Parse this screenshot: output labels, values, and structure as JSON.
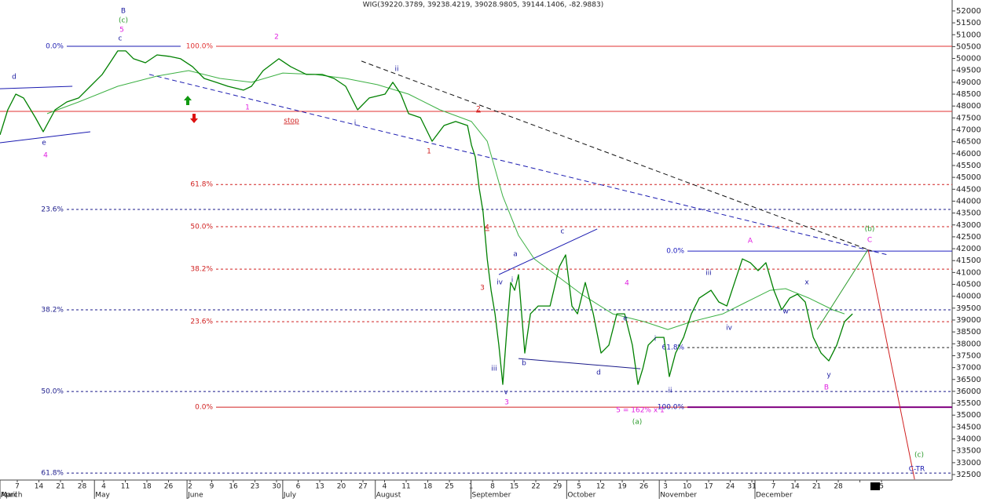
{
  "chart_data": {
    "type": "line",
    "title": "WIG(39220.3789, 39238.4219, 39028.9805, 39144.1406, -82.9883)",
    "xlim": [
      0.2,
      44.27
    ],
    "ylim": [
      32270,
      52460
    ],
    "yticks": [
      32500,
      33000,
      33500,
      34000,
      34500,
      35000,
      35500,
      36000,
      36500,
      37000,
      37500,
      38000,
      38500,
      39000,
      39500,
      40000,
      40500,
      41000,
      41500,
      42000,
      42500,
      43000,
      43500,
      44000,
      44500,
      45000,
      45500,
      46000,
      46500,
      47000,
      47500,
      48000,
      48500,
      49000,
      49500,
      50000,
      50500,
      51000,
      51500,
      52000
    ],
    "categories": [
      "8",
      "7",
      "14",
      "21",
      "28",
      "4",
      "11",
      "18",
      "26",
      "2",
      "9",
      "16",
      "23",
      "30",
      "6",
      "13",
      "20",
      "27",
      "4",
      "11",
      "18",
      "25",
      "1",
      "8",
      "15",
      "22",
      "29",
      "5",
      "12",
      "19",
      "26",
      "3",
      "10",
      "17",
      "24",
      "31",
      "7",
      "14",
      "21",
      "28",
      null,
      "5"
    ],
    "months": [
      "March",
      "April",
      "May",
      "June",
      "July",
      "August",
      "September",
      "October",
      "November",
      "December"
    ],
    "series": [
      {
        "color": "#008000",
        "width": 1.3,
        "x": [
          0.2,
          0.56,
          0.93,
          1.29,
          1.84,
          2.2,
          2.75,
          3.29,
          3.84,
          4.38,
          4.93,
          5.29,
          5.65,
          6.02,
          6.38,
          6.93,
          7.47,
          8.02,
          8.56,
          9.11,
          9.65,
          10.2,
          10.75,
          11.47,
          11.84,
          12.38,
          13.11,
          13.65,
          14.38,
          15.11,
          15.66,
          16.2,
          16.75,
          17.29,
          18.02,
          18.38,
          18.75,
          19.11,
          19.66,
          20.2,
          20.75,
          21.29,
          21.84,
          22.02,
          22.2,
          22.38,
          22.56,
          22.75,
          22.93,
          23.11,
          23.29,
          23.47,
          23.66,
          23.84,
          24.02,
          24.2,
          24.49,
          24.75,
          25.11,
          25.66,
          26.09,
          26.38,
          26.67,
          26.93,
          27.29,
          27.66,
          28.02,
          28.38,
          28.75,
          29.11,
          29.47,
          29.73,
          29.95,
          30.2,
          30.56,
          30.93,
          31.18,
          31.47,
          31.84,
          32.2,
          32.56,
          33.11,
          33.47,
          33.84,
          34.2,
          34.56,
          34.93,
          35.29,
          35.65,
          36.02,
          36.38,
          36.75,
          37.11,
          37.47,
          37.84,
          38.2,
          38.56,
          38.93,
          39.29,
          39.66
        ],
        "values": [
          46790,
          47840,
          48500,
          48340,
          47510,
          46920,
          47840,
          48170,
          48340,
          48830,
          49330,
          49820,
          50320,
          50320,
          49990,
          49820,
          50150,
          50090,
          49990,
          49660,
          49160,
          49000,
          48830,
          48670,
          48830,
          49490,
          49990,
          49660,
          49330,
          49330,
          49160,
          48830,
          47840,
          48340,
          48500,
          49000,
          48500,
          47680,
          47510,
          46520,
          47180,
          47350,
          47180,
          46360,
          45860,
          44540,
          43550,
          41570,
          40250,
          39260,
          37940,
          36290,
          38600,
          40580,
          40250,
          40910,
          37610,
          39260,
          39590,
          39590,
          41240,
          41740,
          39590,
          39260,
          40580,
          39260,
          37610,
          37940,
          39260,
          39260,
          37940,
          36290,
          36950,
          37940,
          38270,
          38270,
          36620,
          37610,
          38270,
          39260,
          39920,
          40250,
          39760,
          39590,
          40580,
          41570,
          41410,
          41080,
          41410,
          40250,
          39430,
          39920,
          40090,
          39760,
          38270,
          37610,
          37280,
          37940,
          38930,
          39260
        ]
      },
      {
        "color": "#3cb043",
        "width": 1,
        "x": [
          2.38,
          3.84,
          5.65,
          7.47,
          8.93,
          10.38,
          11.84,
          13.29,
          14.75,
          16.2,
          17.66,
          19.11,
          20.56,
          22.02,
          22.75,
          23.47,
          24.2,
          24.93,
          25.66,
          27.11,
          28.56,
          30.02,
          31.11,
          32.2,
          33.66,
          34.75,
          35.84,
          36.56,
          37.65,
          38.75,
          39.29
        ],
        "values": [
          47680,
          48170,
          48830,
          49260,
          49490,
          49160,
          49000,
          49390,
          49330,
          49160,
          48900,
          48500,
          47840,
          47350,
          46520,
          44210,
          42560,
          41570,
          41080,
          40090,
          39260,
          38930,
          38600,
          38930,
          39260,
          39760,
          40250,
          40320,
          39920,
          39430,
          39260
        ]
      }
    ],
    "levels": [
      {
        "value": 50515,
        "label": "100.0%",
        "color": "#e03030",
        "dash": false,
        "x": [
          10.2,
          44.27
        ]
      },
      {
        "value": 50515,
        "label": "0.0%",
        "color": "#1a1ab0",
        "dash": false,
        "x": [
          3.29,
          8.56
        ]
      },
      {
        "value": 47776,
        "color": "#e03030",
        "dash": false,
        "x": [
          0.2,
          44.27
        ]
      },
      {
        "value": 44700,
        "label": "61.8%",
        "color": "#d02020",
        "dash": true,
        "x": [
          10.2,
          44.27
        ]
      },
      {
        "value": 43650,
        "label": "23.6%",
        "color": "#1a1a8a",
        "dash": true,
        "x": [
          3.29,
          44.27
        ]
      },
      {
        "value": 42925,
        "label": "50.0%",
        "color": "#d02020",
        "dash": true,
        "x": [
          10.2,
          44.27
        ]
      },
      {
        "value": 41900,
        "label": "0.0%",
        "color": "#2020c0",
        "dash": false,
        "x": [
          32.02,
          44.27
        ]
      },
      {
        "value": 41140,
        "label": "38.2%",
        "color": "#d02020",
        "dash": true,
        "x": [
          10.2,
          44.27
        ]
      },
      {
        "value": 39430,
        "label": "38.2%",
        "color": "#1a1a8a",
        "dash": true,
        "x": [
          3.29,
          44.27
        ]
      },
      {
        "value": 38930,
        "label": "23.6%",
        "color": "#d02020",
        "dash": true,
        "x": [
          10.2,
          44.27
        ]
      },
      {
        "value": 37840,
        "label": "61.8%",
        "color": "#222222",
        "label_color": "#1a1ab0",
        "dash": true,
        "x": [
          32.02,
          44.27
        ]
      },
      {
        "value": 35995,
        "label": "50.0%",
        "color": "#1a1a8a",
        "dash": true,
        "x": [
          3.29,
          44.27
        ]
      },
      {
        "value": 35335,
        "label": "0.0%",
        "color": "#d02020",
        "dash": false,
        "x": [
          10.2,
          44.27
        ]
      },
      {
        "value": 35335,
        "label": "100.0%",
        "color": "#800080",
        "width": 2,
        "label_color": "#1a1ab0",
        "dash": false,
        "x": [
          32.02,
          44.27
        ]
      },
      {
        "value": 32563,
        "label": "61.8%",
        "color": "#1a1a8a",
        "dash": true,
        "x": [
          3.29,
          44.27
        ]
      }
    ],
    "trendlines": [
      {
        "x": [
          7.11,
          41.29
        ],
        "y": [
          49330,
          41740
        ],
        "color": "#1a1ab0",
        "dash": true
      },
      {
        "x": [
          16.93,
          40.56
        ],
        "y": [
          49890,
          41900
        ],
        "color": "#111111",
        "dash": true
      },
      {
        "x": [
          0.2,
          4.38
        ],
        "y": [
          46456,
          46918
        ],
        "color": "#1a1ab0",
        "dash": false
      },
      {
        "x": [
          0.2,
          3.55
        ],
        "y": [
          48730,
          48830
        ],
        "color": "#1a1ab0",
        "dash": false
      },
      {
        "x": [
          23.29,
          27.84
        ],
        "y": [
          40910,
          42830
        ],
        "color": "#1a1ab0",
        "dash": false
      },
      {
        "x": [
          24.2,
          29.84
        ],
        "y": [
          37380,
          36950
        ],
        "color": "#1a1a8a",
        "dash": false
      },
      {
        "x": [
          38.02,
          40.38
        ],
        "y": [
          38600,
          41970
        ],
        "color": "#2a9a2a",
        "dash": false
      },
      {
        "x": [
          40.38,
          42.53
        ],
        "y": [
          41970,
          32300
        ],
        "color": "#d02020",
        "dash": false
      }
    ],
    "annotations": [
      {
        "text": "B",
        "color": "#1a1aa0"
      },
      {
        "text": "(c)",
        "color": "#2a9a2a"
      },
      {
        "text": "5",
        "color": "#e020e0"
      },
      {
        "text": "c",
        "color": "#1a1aa0"
      },
      {
        "text": "2",
        "color": "#e020e0"
      },
      {
        "text": "d",
        "color": "#1a1aa0"
      },
      {
        "text": "e",
        "color": "#1a1aa0"
      },
      {
        "text": "4",
        "color": "#e020e0"
      },
      {
        "text": "ii",
        "color": "#1a1aa0"
      },
      {
        "text": "2",
        "color": "#d02020",
        "underline": true
      },
      {
        "text": "stop",
        "color": "#d02020",
        "underline": true
      },
      {
        "text": "1",
        "color": "#e020e0"
      },
      {
        "text": "1",
        "color": "#d02020"
      },
      {
        "text": "i",
        "color": "#1a1aa0"
      },
      {
        "text": "4",
        "color": "#d02020",
        "underline": true
      },
      {
        "text": "c",
        "color": "#1a1aa0"
      },
      {
        "text": "a",
        "color": "#1a1aa0"
      },
      {
        "text": "iv",
        "color": "#1a1aa0"
      },
      {
        "text": "i",
        "color": "#1a1aa0"
      },
      {
        "text": "3",
        "color": "#d02020"
      },
      {
        "text": "4",
        "color": "#e020e0"
      },
      {
        "text": "e",
        "color": "#1a1aa0"
      },
      {
        "text": "iii",
        "color": "#1a1aa0"
      },
      {
        "text": "b",
        "color": "#1a1aa0"
      },
      {
        "text": "d",
        "color": "#1a1aa0"
      },
      {
        "text": "v",
        "color": "#1a1aa0"
      },
      {
        "text": "3",
        "color": "#e020e0"
      },
      {
        "text": "5 = 162% x 1",
        "color": "#e020e0"
      },
      {
        "text": "(a)",
        "color": "#2a9a2a"
      },
      {
        "text": "ii",
        "color": "#1a1aa0"
      },
      {
        "text": "i",
        "color": "#1a1aa0"
      },
      {
        "text": "iii",
        "color": "#1a1aa0"
      },
      {
        "text": "iv",
        "color": "#1a1aa0"
      },
      {
        "text": "A",
        "color": "#e020e0"
      },
      {
        "text": "x",
        "color": "#1a1aa0"
      },
      {
        "text": "w",
        "color": "#1a1aa0"
      },
      {
        "text": "y",
        "color": "#1a1aa0"
      },
      {
        "text": "B",
        "color": "#e020e0"
      },
      {
        "text": "(b)",
        "color": "#2a9a2a"
      },
      {
        "text": "C",
        "color": "#e020e0"
      },
      {
        "text": "(c)",
        "color": "#2a9a2a"
      },
      {
        "text": "C-TR",
        "color": "#1a1ab0"
      }
    ]
  }
}
